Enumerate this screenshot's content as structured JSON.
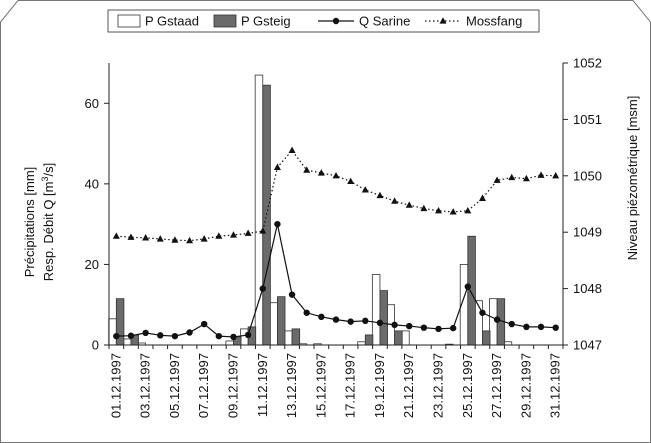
{
  "chart_data": {
    "type": "bar",
    "title": "",
    "ylabel_left_line1": "Précipitations [mm]",
    "ylabel_left_line2_prefix": "Resp. Débit Q [m",
    "ylabel_left_line2_sup": "3",
    "ylabel_left_line2_suffix": "/s]",
    "ylabel_right": "Niveau piézométrique [msm]",
    "ylim_left": [
      0,
      70
    ],
    "yticks_left": [
      0,
      20,
      40,
      60
    ],
    "ylim_right": [
      1047,
      1052
    ],
    "yticks_right": [
      1047,
      1048,
      1049,
      1050,
      1051,
      1052
    ],
    "legend_position": "top",
    "x": [
      "01.12.1997",
      "02.12.1997",
      "03.12.1997",
      "04.12.1997",
      "05.12.1997",
      "06.12.1997",
      "07.12.1997",
      "08.12.1997",
      "09.12.1997",
      "10.12.1997",
      "11.12.1997",
      "12.12.1997",
      "13.12.1997",
      "14.12.1997",
      "15.12.1997",
      "16.12.1997",
      "17.12.1997",
      "18.12.1997",
      "19.12.1997",
      "20.12.1997",
      "21.12.1997",
      "22.12.1997",
      "23.12.1997",
      "24.12.1997",
      "25.12.1997",
      "26.12.1997",
      "27.12.1997",
      "28.12.1997",
      "29.12.1997",
      "30.12.1997",
      "31.12.1997"
    ],
    "x_tick_labels": [
      "01.12.1997",
      "03.12.1997",
      "05.12.1997",
      "07.12.1997",
      "09.12.1997",
      "11.12.1997",
      "13.12.1997",
      "15.12.1997",
      "17.12.1997",
      "19.12.1997",
      "21.12.1997",
      "23.12.1997",
      "25.12.1997",
      "27.12.1997",
      "29.12.1997",
      "31.12.1997"
    ],
    "series": [
      {
        "name": "P Gstaad",
        "kind": "bar",
        "axis": "left",
        "color": "#ffffff",
        "stroke": "#333333",
        "values": [
          6.5,
          1.5,
          0.5,
          0,
          0,
          0,
          0,
          0,
          1,
          4,
          67,
          10.5,
          3.5,
          0.3,
          0.3,
          0,
          0,
          0.8,
          17.5,
          10,
          3.5,
          0,
          0,
          0.2,
          20,
          11,
          11.5,
          0.8,
          0,
          0,
          0
        ]
      },
      {
        "name": "P Gsteig",
        "kind": "bar",
        "axis": "left",
        "color": "#6b6b6b",
        "stroke": "#333333",
        "values": [
          11.5,
          2.5,
          0,
          0,
          0,
          0,
          0,
          0,
          2,
          4.5,
          64.5,
          12,
          4,
          0,
          0,
          0,
          0,
          2.5,
          13.5,
          3.5,
          0,
          0,
          0,
          0,
          27,
          3.5,
          11.5,
          0,
          0,
          0,
          0
        ]
      },
      {
        "name": "Q Sarine",
        "kind": "line",
        "axis": "left",
        "color": "#111111",
        "marker": "circle",
        "values": [
          2.2,
          2.3,
          3,
          2.4,
          2.2,
          3.1,
          5.2,
          2.2,
          2,
          2.5,
          14,
          30,
          12.5,
          8,
          7,
          6.3,
          5.8,
          6,
          5.5,
          5,
          4.7,
          4.3,
          4,
          4.2,
          14.5,
          8,
          6.3,
          5.2,
          4.5,
          4.5,
          4.3
        ]
      },
      {
        "name": "Mossfang",
        "kind": "line-dotted",
        "axis": "right",
        "color": "#111111",
        "marker": "triangle",
        "values": [
          1048.93,
          1048.91,
          1048.9,
          1048.88,
          1048.86,
          1048.85,
          1048.88,
          1048.93,
          1048.95,
          1048.98,
          1049.02,
          1050.15,
          1050.45,
          1050.1,
          1050.05,
          1050,
          1049.9,
          1049.75,
          1049.65,
          1049.55,
          1049.48,
          1049.42,
          1049.38,
          1049.36,
          1049.38,
          1049.6,
          1049.92,
          1049.97,
          1049.95,
          1050.01,
          1050
        ]
      }
    ]
  }
}
